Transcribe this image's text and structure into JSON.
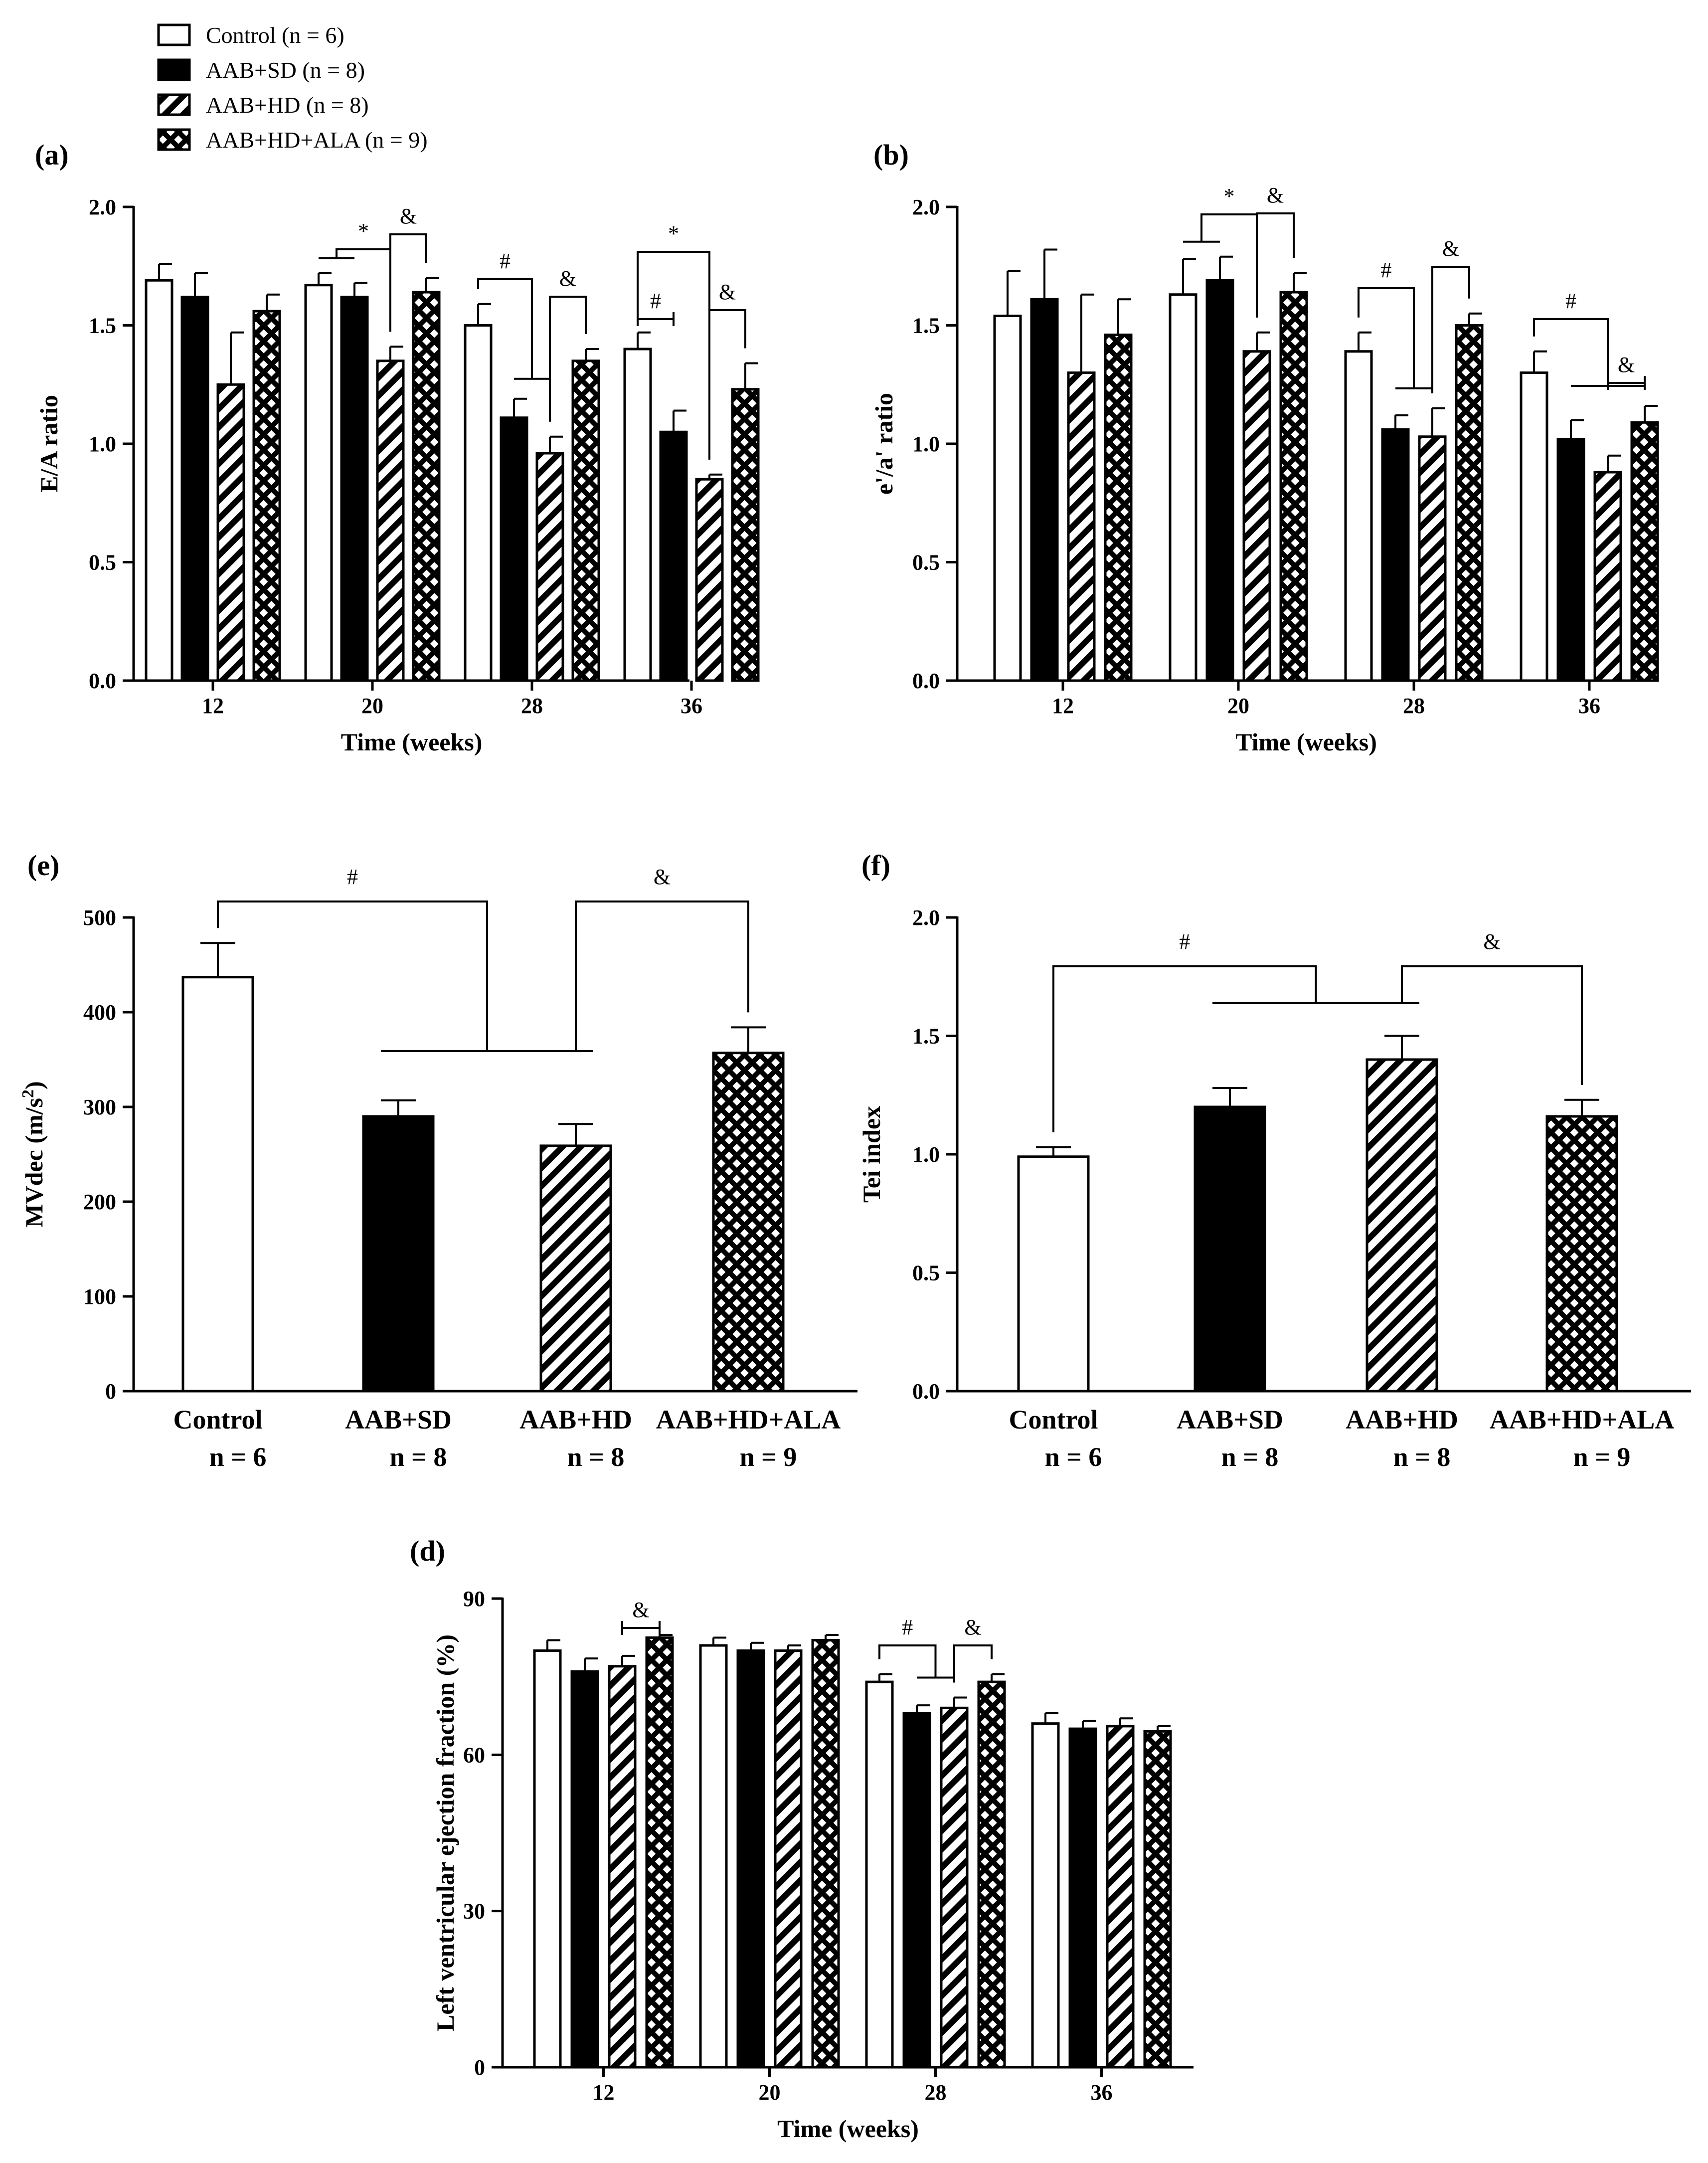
{
  "legend": {
    "items": [
      {
        "name": "Control (n = 6)",
        "pattern": "open"
      },
      {
        "name": "AAB+SD (n = 8)",
        "pattern": "solid"
      },
      {
        "name": "AAB+HD (n = 8)",
        "pattern": "hatch"
      },
      {
        "name": "AAB+HD+ALA (n = 9)",
        "pattern": "cross"
      }
    ]
  },
  "colors": {
    "ink": "#000000",
    "paper": "#ffffff"
  },
  "chart_data": [
    {
      "id": "a",
      "panel_label": "(a)",
      "type": "bar",
      "ylabel": "E/A ratio",
      "xlabel": "Time (weeks)",
      "categories": [
        "12",
        "20",
        "28",
        "36"
      ],
      "ylim": [
        0,
        2.0
      ],
      "yticks": [
        "0.0",
        "0.5",
        "1.0",
        "1.5",
        "2.0"
      ],
      "series": [
        {
          "name": "Control",
          "values": [
            1.69,
            1.67,
            1.5,
            1.4
          ],
          "errors": [
            0.07,
            0.05,
            0.09,
            0.07
          ]
        },
        {
          "name": "AAB+SD",
          "values": [
            1.62,
            1.62,
            1.11,
            1.05
          ],
          "errors": [
            0.1,
            0.06,
            0.08,
            0.09
          ]
        },
        {
          "name": "AAB+HD",
          "values": [
            1.25,
            1.35,
            0.96,
            0.85
          ],
          "errors": [
            0.22,
            0.06,
            0.07,
            0.02
          ]
        },
        {
          "name": "AAB+HD+ALA",
          "values": [
            1.56,
            1.64,
            1.35,
            1.23
          ],
          "errors": [
            0.07,
            0.06,
            0.05,
            0.11
          ]
        }
      ],
      "annotations": [
        "*",
        "&",
        "#",
        "&",
        "#",
        "*",
        "&"
      ]
    },
    {
      "id": "b",
      "panel_label": "(b)",
      "type": "bar",
      "ylabel": "e'/a' ratio",
      "xlabel": "Time (weeks)",
      "categories": [
        "12",
        "20",
        "28",
        "36"
      ],
      "ylim": [
        0,
        2.0
      ],
      "yticks": [
        "0.0",
        "0.5",
        "1.0",
        "1.5",
        "2.0"
      ],
      "series": [
        {
          "name": "Control",
          "values": [
            1.54,
            1.63,
            1.39,
            1.3
          ],
          "errors": [
            0.19,
            0.15,
            0.08,
            0.09
          ]
        },
        {
          "name": "AAB+SD",
          "values": [
            1.61,
            1.69,
            1.06,
            1.02
          ],
          "errors": [
            0.21,
            0.1,
            0.06,
            0.08
          ]
        },
        {
          "name": "AAB+HD",
          "values": [
            1.3,
            1.39,
            1.03,
            0.88
          ],
          "errors": [
            0.33,
            0.08,
            0.12,
            0.07
          ]
        },
        {
          "name": "AAB+HD+ALA",
          "values": [
            1.46,
            1.64,
            1.5,
            1.09
          ],
          "errors": [
            0.15,
            0.08,
            0.05,
            0.07
          ]
        }
      ],
      "annotations": [
        "*",
        "&",
        "#",
        "&",
        "#",
        "&"
      ]
    },
    {
      "id": "e",
      "panel_label": "(e)",
      "type": "bar",
      "ylabel": "MVdec (m/s",
      "ylabel_sup": "2",
      "ylabel_end": ")",
      "categories": [
        "Control",
        "AAB+SD",
        "AAB+HD",
        "AAB+HD+ALA"
      ],
      "category_n": [
        "n = 6",
        "n = 8",
        "n = 8",
        "n = 9"
      ],
      "ylim": [
        0,
        500
      ],
      "yticks": [
        "0",
        "100",
        "200",
        "300",
        "400",
        "500"
      ],
      "values": [
        437,
        290,
        259,
        357
      ],
      "errors": [
        36,
        17,
        23,
        27
      ],
      "annotations": [
        "#",
        "&"
      ]
    },
    {
      "id": "f",
      "panel_label": "(f)",
      "type": "bar",
      "ylabel": "Tei index",
      "categories": [
        "Control",
        "AAB+SD",
        "AAB+HD",
        "AAB+HD+ALA"
      ],
      "category_n": [
        "n = 6",
        "n = 8",
        "n = 8",
        "n = 9"
      ],
      "ylim": [
        0,
        2.0
      ],
      "yticks": [
        "0.0",
        "0.5",
        "1.0",
        "1.5",
        "2.0"
      ],
      "values": [
        0.99,
        1.2,
        1.4,
        1.16
      ],
      "errors": [
        0.04,
        0.08,
        0.1,
        0.07
      ],
      "annotations": [
        "#",
        "&"
      ]
    },
    {
      "id": "d",
      "panel_label": "(d)",
      "type": "bar",
      "ylabel": "Left ventricular ejection fraction (%)",
      "xlabel": "Time (weeks)",
      "categories": [
        "12",
        "20",
        "28",
        "36"
      ],
      "ylim": [
        0,
        90
      ],
      "yticks": [
        "0",
        "30",
        "60",
        "90"
      ],
      "series": [
        {
          "name": "Control",
          "values": [
            80,
            81,
            74,
            66
          ],
          "errors": [
            2,
            1.5,
            1.5,
            2
          ]
        },
        {
          "name": "AAB+SD",
          "values": [
            76,
            80,
            68,
            65
          ],
          "errors": [
            2.5,
            1.5,
            1.5,
            1.5
          ]
        },
        {
          "name": "AAB+HD",
          "values": [
            77,
            80,
            69,
            65.5
          ],
          "errors": [
            2,
            1,
            2,
            1.5
          ]
        },
        {
          "name": "AAB+HD+ALA",
          "values": [
            82.5,
            82,
            74,
            64.5
          ],
          "errors": [
            0.5,
            1,
            1.5,
            1
          ]
        }
      ],
      "annotations": [
        "&",
        "#",
        "&"
      ]
    }
  ]
}
